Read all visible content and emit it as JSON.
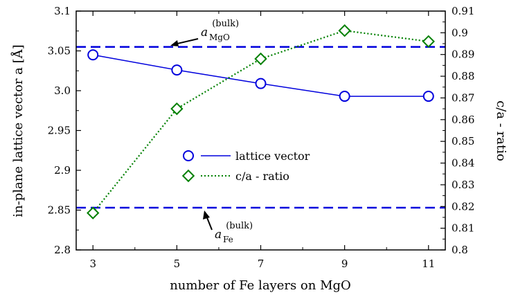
{
  "chart_data": {
    "type": "line",
    "xlabel": "number of Fe layers on MgO",
    "ylabel_left": "in-plane lattice vector a [Å]",
    "ylabel_right": "c/a - ratio",
    "x_ticks": [
      "3",
      "5",
      "7",
      "9",
      "11"
    ],
    "y_left_ticks": [
      "2.8",
      "2.85",
      "2.9",
      "2.95",
      "3.0",
      "3.05",
      "3.1"
    ],
    "y_right_ticks": [
      "0.8",
      "0.81",
      "0.82",
      "0.83",
      "0.84",
      "0.85",
      "0.86",
      "0.87",
      "0.88",
      "0.89",
      "0.9",
      "0.91"
    ],
    "xlim": [
      2.6,
      11.4
    ],
    "ylim_left": [
      2.8,
      3.1
    ],
    "ylim_right": [
      0.8,
      0.91
    ],
    "grid": false,
    "legend_position": "center",
    "series": [
      {
        "name": "lattice vector",
        "axis": "left",
        "color": "#0000dd",
        "line_style": "solid",
        "marker": "circle",
        "x": [
          3,
          5,
          7,
          9,
          11
        ],
        "y": [
          3.045,
          3.026,
          3.009,
          2.993,
          2.993
        ]
      },
      {
        "name": "c/a - ratio",
        "axis": "right",
        "color": "#008000",
        "line_style": "dotted",
        "marker": "diamond",
        "x": [
          3,
          5,
          7,
          9,
          11
        ],
        "y": [
          0.817,
          0.865,
          0.888,
          0.901,
          0.896
        ]
      }
    ],
    "reference_lines": [
      {
        "axis": "left",
        "value": 3.055,
        "color": "#0000dd",
        "style": "dashed",
        "label_base": "a",
        "label_sup": "(bulk)",
        "label_sub": "MgO"
      },
      {
        "axis": "left",
        "value": 2.853,
        "color": "#0000dd",
        "style": "dashed",
        "label_base": "a",
        "label_sup": "(bulk)",
        "label_sub": "Fe"
      }
    ]
  }
}
